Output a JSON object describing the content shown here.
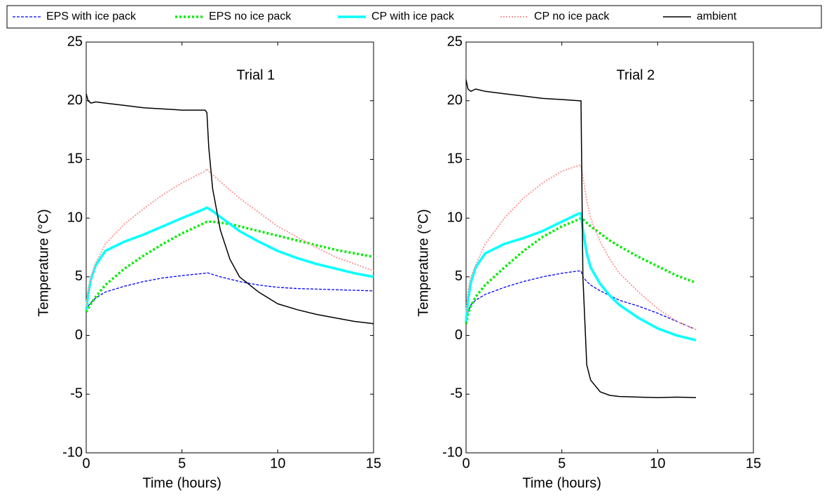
{
  "chart_data": [
    {
      "type": "line",
      "title": "Trial 1",
      "xlabel": "Time (hours)",
      "ylabel": "Temperature (°C)",
      "xlim": [
        0,
        15
      ],
      "xticks": [
        0,
        5,
        10,
        15
      ],
      "ylim": [
        -10,
        25
      ],
      "yticks": [
        -10,
        -5,
        0,
        5,
        10,
        15,
        20,
        25
      ],
      "x": [
        0,
        0.1,
        0.25,
        0.5,
        1,
        2,
        3,
        4,
        5,
        6.2,
        6.3,
        6.4,
        6.6,
        7,
        7.5,
        8,
        9,
        10,
        11,
        12,
        13,
        14,
        15
      ],
      "series": [
        {
          "name": "EPS with ice pack",
          "color": "#0000ff",
          "style": "dashed",
          "linewidth": 1.3,
          "values": [
            2.2,
            2.5,
            2.8,
            3.2,
            3.7,
            4.2,
            4.6,
            4.9,
            5.1,
            5.3,
            5.35,
            5.3,
            5.2,
            5.0,
            4.8,
            4.6,
            4.3,
            4.1,
            4.0,
            3.95,
            3.9,
            3.85,
            3.8
          ]
        },
        {
          "name": "EPS no ice pack",
          "color": "#00ee00",
          "style": "dotted",
          "linewidth": 3.5,
          "values": [
            2.0,
            2.3,
            2.7,
            3.3,
            4.3,
            5.7,
            6.8,
            7.8,
            8.7,
            9.6,
            9.7,
            9.7,
            9.7,
            9.6,
            9.5,
            9.3,
            8.9,
            8.5,
            8.1,
            7.7,
            7.3,
            7.0,
            6.7
          ]
        },
        {
          "name": "CP with ice pack",
          "color": "#00ffff",
          "style": "solid",
          "linewidth": 3.5,
          "values": [
            2.2,
            3.5,
            4.8,
            6.0,
            7.2,
            8.0,
            8.6,
            9.3,
            10.0,
            10.8,
            10.9,
            10.8,
            10.6,
            10.1,
            9.5,
            8.9,
            8.0,
            7.2,
            6.6,
            6.1,
            5.7,
            5.3,
            5.0
          ]
        },
        {
          "name": "CP no ice pack",
          "color": "#ff9999",
          "style": "dotted",
          "linewidth": 2,
          "values": [
            2.5,
            3.8,
            5.0,
            6.2,
            7.8,
            9.5,
            10.8,
            12.0,
            13.0,
            14.0,
            14.2,
            14.0,
            13.7,
            13.1,
            12.4,
            11.7,
            10.5,
            9.3,
            8.4,
            7.5,
            6.7,
            6.1,
            5.5
          ]
        },
        {
          "name": "ambient",
          "color": "#000000",
          "style": "solid",
          "linewidth": 1.5,
          "values": [
            20.6,
            20.0,
            19.8,
            19.9,
            19.8,
            19.6,
            19.4,
            19.3,
            19.2,
            19.2,
            19.0,
            16.0,
            12.5,
            9.0,
            6.5,
            5.0,
            3.7,
            2.7,
            2.2,
            1.8,
            1.5,
            1.2,
            1.0
          ]
        }
      ]
    },
    {
      "type": "line",
      "title": "Trial 2",
      "xlabel": "Time (hours)",
      "ylabel": "Temperature (°C)",
      "xlim": [
        0,
        15
      ],
      "xticks": [
        0,
        5,
        10,
        15
      ],
      "ylim": [
        -10,
        25
      ],
      "yticks": [
        -10,
        -5,
        0,
        5,
        10,
        15,
        20,
        25
      ],
      "x": [
        0,
        0.1,
        0.25,
        0.5,
        1,
        2,
        3,
        4,
        5,
        5.9,
        6,
        6.1,
        6.3,
        6.5,
        7,
        7.5,
        8,
        9,
        10,
        11,
        12
      ],
      "series": [
        {
          "color": "#0000ff",
          "style": "dashed",
          "linewidth": 1.3,
          "values": [
            1.2,
            2.0,
            2.6,
            3.0,
            3.5,
            4.1,
            4.6,
            5.0,
            5.3,
            5.5,
            5.5,
            5.0,
            4.6,
            4.3,
            3.8,
            3.4,
            3.0,
            2.5,
            1.9,
            1.2,
            0.5
          ]
        },
        {
          "color": "#00ee00",
          "style": "dotted",
          "linewidth": 3.5,
          "values": [
            1.0,
            1.8,
            2.5,
            3.3,
            4.3,
            5.8,
            7.2,
            8.4,
            9.3,
            9.9,
            10.0,
            9.9,
            9.6,
            9.3,
            8.7,
            8.1,
            7.6,
            6.7,
            5.9,
            5.1,
            4.5
          ]
        },
        {
          "color": "#00ffff",
          "style": "solid",
          "linewidth": 3.5,
          "values": [
            1.2,
            3.0,
            4.5,
            5.8,
            7.0,
            7.8,
            8.3,
            8.9,
            9.7,
            10.4,
            10.4,
            9.0,
            7.0,
            5.8,
            4.4,
            3.4,
            2.6,
            1.5,
            0.6,
            0.0,
            -0.4
          ]
        },
        {
          "color": "#ff9999",
          "style": "dotted",
          "linewidth": 2,
          "values": [
            2.0,
            3.8,
            5.0,
            6.0,
            7.8,
            10.0,
            11.7,
            13.0,
            14.0,
            14.5,
            14.5,
            13.5,
            11.5,
            10.0,
            8.0,
            6.5,
            5.3,
            3.7,
            2.3,
            1.2,
            0.5
          ]
        },
        {
          "color": "#000000",
          "style": "solid",
          "linewidth": 1.5,
          "values": [
            21.8,
            21.0,
            20.8,
            21.0,
            20.8,
            20.6,
            20.4,
            20.2,
            20.1,
            20.0,
            20.0,
            5.0,
            -2.5,
            -3.8,
            -4.8,
            -5.1,
            -5.2,
            -5.25,
            -5.3,
            -5.25,
            -5.3
          ]
        }
      ]
    }
  ]
}
